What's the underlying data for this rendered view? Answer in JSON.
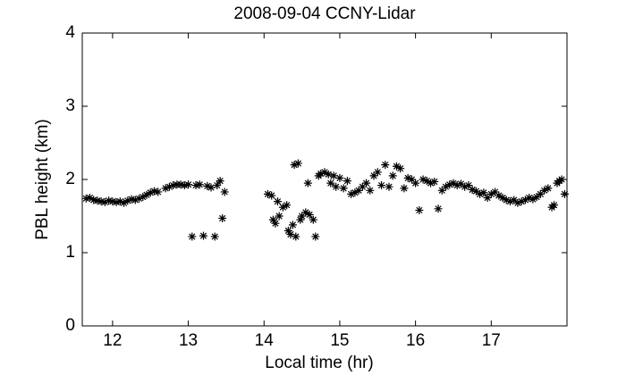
{
  "chart_data": {
    "type": "scatter",
    "title": "2008-09-04 CCNY-Lidar",
    "xlabel": "Local time (hr)",
    "ylabel": "PBL height (km)",
    "color": "#000000",
    "xlim": [
      11.6,
      18.0
    ],
    "xticks": [
      12,
      13,
      14,
      15,
      16,
      17
    ],
    "ylim": [
      0,
      4
    ],
    "yticks": [
      0,
      1,
      2,
      3,
      4
    ],
    "x": [
      11.65,
      11.7,
      11.75,
      11.8,
      11.85,
      11.9,
      11.95,
      12.0,
      12.05,
      12.1,
      12.15,
      12.2,
      12.25,
      12.3,
      12.35,
      12.4,
      12.45,
      12.5,
      12.55,
      12.6,
      12.7,
      12.75,
      12.8,
      12.85,
      12.9,
      12.95,
      13.0,
      13.05,
      13.1,
      13.15,
      13.2,
      13.25,
      13.3,
      13.35,
      13.38,
      13.42,
      13.45,
      13.48,
      14.05,
      14.1,
      14.12,
      14.15,
      14.18,
      14.2,
      14.25,
      14.3,
      14.32,
      14.35,
      14.38,
      14.4,
      14.42,
      14.45,
      14.48,
      14.5,
      14.55,
      14.58,
      14.6,
      14.65,
      14.68,
      14.72,
      14.75,
      14.8,
      14.85,
      14.88,
      14.92,
      14.95,
      15.0,
      15.05,
      15.1,
      15.15,
      15.2,
      15.25,
      15.3,
      15.35,
      15.4,
      15.45,
      15.5,
      15.55,
      15.6,
      15.65,
      15.7,
      15.75,
      15.8,
      15.85,
      15.9,
      15.95,
      16.0,
      16.05,
      16.1,
      16.15,
      16.2,
      16.25,
      16.3,
      16.35,
      16.4,
      16.45,
      16.5,
      16.55,
      16.6,
      16.65,
      16.7,
      16.75,
      16.8,
      16.85,
      16.9,
      16.95,
      17.0,
      17.05,
      17.1,
      17.15,
      17.2,
      17.25,
      17.3,
      17.35,
      17.4,
      17.45,
      17.5,
      17.55,
      17.6,
      17.65,
      17.7,
      17.75,
      17.8,
      17.83,
      17.87,
      17.9,
      17.93,
      17.97
    ],
    "values": [
      1.74,
      1.75,
      1.72,
      1.71,
      1.7,
      1.69,
      1.71,
      1.7,
      1.69,
      1.7,
      1.68,
      1.71,
      1.73,
      1.72,
      1.74,
      1.76,
      1.79,
      1.82,
      1.84,
      1.83,
      1.88,
      1.9,
      1.92,
      1.93,
      1.93,
      1.92,
      1.93,
      1.22,
      1.92,
      1.93,
      1.23,
      1.91,
      1.89,
      1.22,
      1.92,
      1.98,
      1.47,
      1.83,
      1.8,
      1.78,
      1.45,
      1.4,
      1.7,
      1.5,
      1.62,
      1.65,
      1.3,
      1.25,
      1.38,
      2.2,
      1.22,
      2.22,
      1.45,
      1.5,
      1.55,
      1.95,
      1.52,
      1.45,
      1.22,
      2.05,
      2.08,
      2.1,
      2.07,
      1.95,
      2.05,
      1.9,
      2.02,
      1.88,
      1.98,
      1.8,
      1.82,
      1.85,
      1.9,
      1.95,
      1.85,
      2.05,
      2.1,
      1.92,
      2.2,
      1.9,
      2.05,
      2.18,
      2.15,
      1.88,
      2.02,
      2.0,
      1.95,
      1.58,
      2.0,
      1.98,
      1.95,
      1.97,
      1.6,
      1.85,
      1.9,
      1.93,
      1.95,
      1.92,
      1.94,
      1.9,
      1.92,
      1.86,
      1.84,
      1.8,
      1.82,
      1.75,
      1.8,
      1.83,
      1.78,
      1.75,
      1.72,
      1.7,
      1.72,
      1.68,
      1.7,
      1.72,
      1.75,
      1.73,
      1.76,
      1.8,
      1.85,
      1.88,
      1.62,
      1.65,
      1.95,
      1.98,
      2.0,
      1.8
    ]
  }
}
